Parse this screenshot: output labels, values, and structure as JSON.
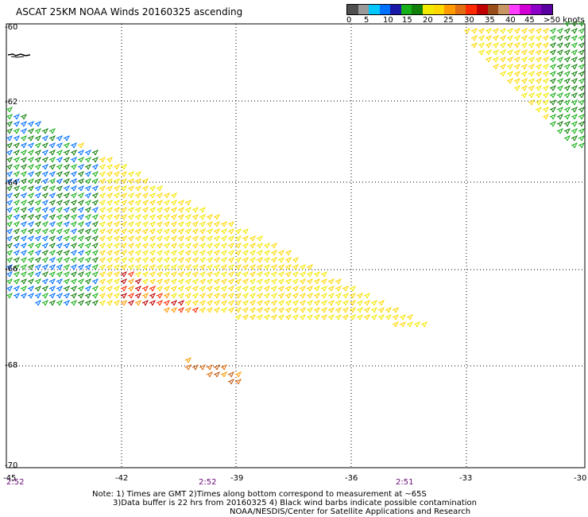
{
  "title": "ASCAT 25KM NOAA Winds 20160325 ascending",
  "legend": {
    "colors": [
      "#4f4f4f",
      "#9a9a9a",
      "#00c8ff",
      "#0070ff",
      "#1a1aa6",
      "#18b018",
      "#10800a",
      "#f2e900",
      "#ffd800",
      "#ff9a00",
      "#e06d0f",
      "#ff2a00",
      "#c00000",
      "#9a4e1a",
      "#c89664",
      "#ff3cff",
      "#d300d3",
      "#8c00c8",
      "#5a00a0"
    ],
    "labels": [
      "0",
      "5",
      "10",
      "15",
      "20",
      "25",
      "30",
      "35",
      "40",
      "45",
      ">50 knots"
    ]
  },
  "lat_labels": [
    "-60",
    "-62",
    "-64",
    "-66",
    "-68",
    "-70"
  ],
  "lon_labels": [
    "-45",
    "-42",
    "-39",
    "-36",
    "-33",
    "-30"
  ],
  "time_labels": [
    "2:52",
    "2:52",
    "2:51"
  ],
  "notes": [
    "Note: 1) Times are GMT 2)Times along bottom correspond to measurement at ~65S",
    "3)Data buffer is 22 hrs from 20160325 4) Black wind barbs indicate possible contamination",
    "NOAA/NESDIS/Center for Satellite Applications and Research"
  ],
  "wind_field": {
    "bands": [
      {
        "region": "swath-upper-right",
        "colors": [
          "#f2e900",
          "#ffd800",
          "#18b018",
          "#10800a"
        ]
      },
      {
        "region": "swath-main-left-green",
        "colors": [
          "#18b018",
          "#10800a",
          "#0070ff"
        ]
      },
      {
        "region": "swath-main-yellow",
        "colors": [
          "#f2e900",
          "#ffd800"
        ]
      },
      {
        "region": "swath-main-edge",
        "colors": [
          "#ff9a00",
          "#ff2a00",
          "#c00000"
        ]
      },
      {
        "region": "swath-patch-south",
        "colors": [
          "#e06d0f",
          "#c05a10",
          "#ff9a00"
        ]
      }
    ]
  }
}
